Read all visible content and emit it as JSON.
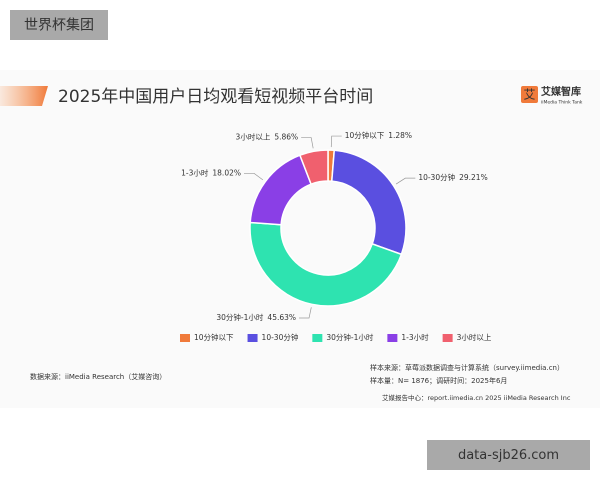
{
  "watermark": "世界杯集团",
  "logo": {
    "icon": "艾",
    "name": "艾媒智库",
    "subtitle": "iiMedia Think Tank"
  },
  "chart_data": {
    "type": "pie",
    "donut": true,
    "title": "2025年中国用户日均观看短视频平台时间",
    "categories": [
      "10分钟以下",
      "10-30分钟",
      "30分钟-1小时",
      "1-3小时",
      "3小时以上"
    ],
    "values": [
      1.28,
      29.21,
      45.63,
      18.02,
      5.86
    ],
    "value_labels": [
      "1.28%",
      "29.21%",
      "45.63%",
      "18.02%",
      "5.86%"
    ],
    "colors": [
      "#f07a3a",
      "#5a4fe0",
      "#2ee3b0",
      "#8a3fe6",
      "#f0606e"
    ],
    "legend": "bottom"
  },
  "source": "数据来源：iiMedia Research（艾媒咨询）",
  "sample_source": "样本来源：草莓派数据调查与计算系统（survey.iimedia.cn）",
  "sample_size": "样本量：N= 1876；调研时间：2025年6月",
  "footer": "艾媒报告中心：report.iimedia.cn    2025 iiMedia Research Inc",
  "site_watermark": "data-sjb26.com"
}
